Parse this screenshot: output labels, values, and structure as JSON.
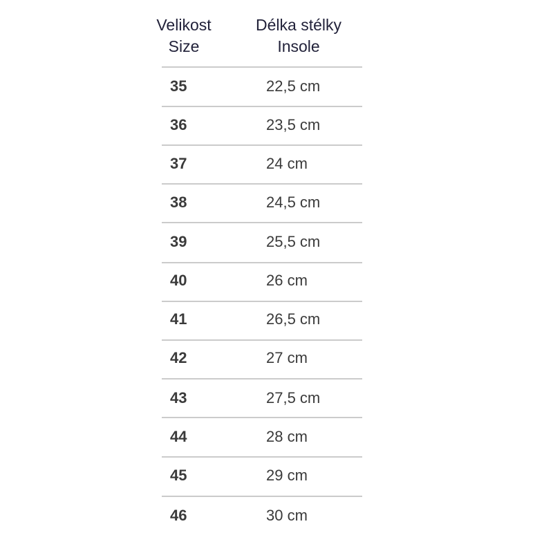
{
  "header": {
    "col1_line1": "Velikost",
    "col1_line2": "Size",
    "col2_line1": "Délka stélky",
    "col2_line2": "Insole"
  },
  "rows": [
    {
      "size": "35",
      "insole": "22,5 cm"
    },
    {
      "size": "36",
      "insole": "23,5 cm"
    },
    {
      "size": "37",
      "insole": "24 cm"
    },
    {
      "size": "38",
      "insole": "24,5 cm"
    },
    {
      "size": "39",
      "insole": "25,5 cm"
    },
    {
      "size": "40",
      "insole": "26 cm"
    },
    {
      "size": "41",
      "insole": "26,5 cm"
    },
    {
      "size": "42",
      "insole": "27 cm"
    },
    {
      "size": "43",
      "insole": "27,5 cm"
    },
    {
      "size": "44",
      "insole": "28 cm"
    },
    {
      "size": "45",
      "insole": "29 cm"
    },
    {
      "size": "46",
      "insole": "30 cm"
    }
  ]
}
